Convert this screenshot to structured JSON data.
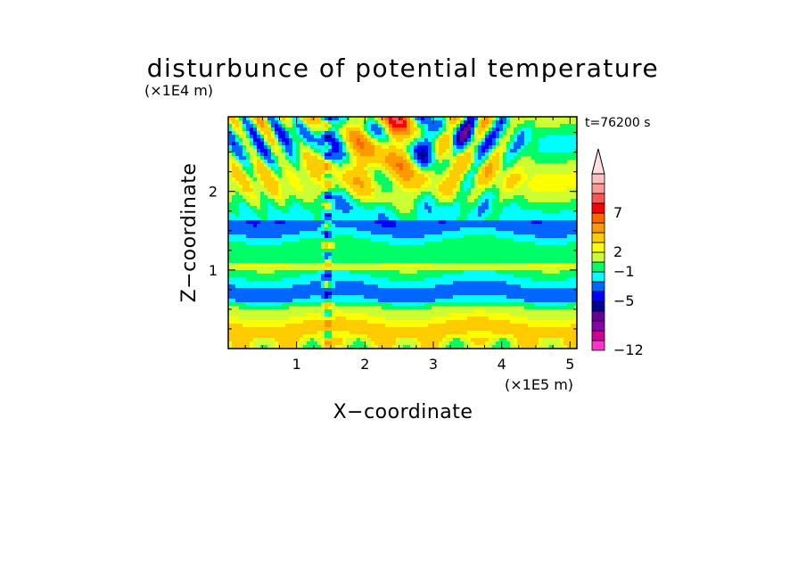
{
  "chart_data": {
    "type": "heatmap",
    "title": "disturbunce of potential temperature",
    "xlabel": "X−coordinate",
    "ylabel": "Z−coordinate",
    "x_unit": "(×1E5 m)",
    "y_unit": "(×1E4 m)",
    "time_label": "t=76200 s",
    "xlim": [
      0,
      5.1
    ],
    "ylim": [
      0,
      2.95
    ],
    "x_ticks": [
      {
        "value": 1,
        "label": "1"
      },
      {
        "value": 2,
        "label": "2"
      },
      {
        "value": 3,
        "label": "3"
      },
      {
        "value": 4,
        "label": "4"
      },
      {
        "value": 5,
        "label": "5"
      }
    ],
    "y_ticks": [
      {
        "value": 1,
        "label": "1"
      },
      {
        "value": 2,
        "label": "2"
      }
    ],
    "x_minor_step": 0.25,
    "y_minor_step": 0.25,
    "colorbar": {
      "colors": [
        "#ff33cc",
        "#cc0099",
        "#8800aa",
        "#660099",
        "#000099",
        "#0000ff",
        "#0066ff",
        "#00ffff",
        "#00ff66",
        "#ccff33",
        "#ffff00",
        "#ffcc00",
        "#ff9900",
        "#ff6600",
        "#ff0000",
        "#ff5555",
        "#ff9999",
        "#ffc0c0"
      ],
      "top_triangle_color": "#ffe0e0",
      "labels": [
        {
          "index": 0,
          "text": "−12"
        },
        {
          "index": 5,
          "text": "−5"
        },
        {
          "index": 8,
          "text": "−1"
        },
        {
          "index": 10,
          "text": "2"
        },
        {
          "index": 14,
          "text": "7"
        }
      ]
    }
  }
}
